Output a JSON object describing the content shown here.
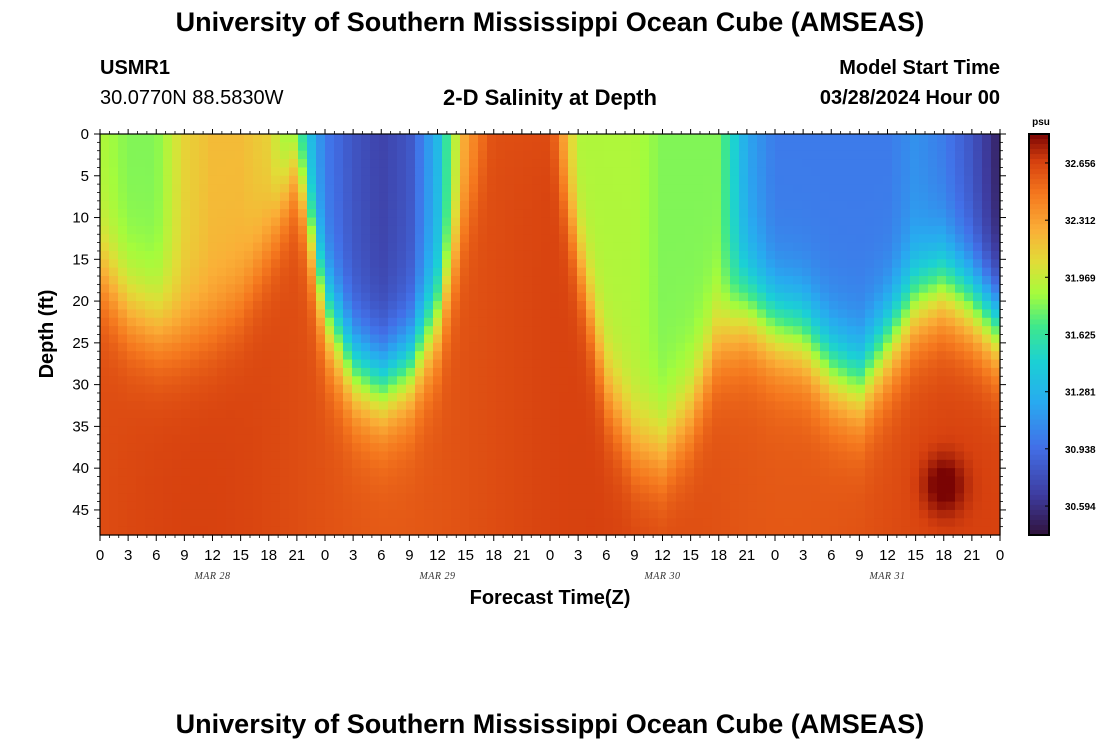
{
  "page": {
    "title": "University of Southern Mississippi Ocean Cube (AMSEAS)",
    "station": "USMR1",
    "coords": "30.0770N  88.5830W",
    "subtitle": "2-D Salinity at Depth",
    "model_label": "Model Start Time",
    "model_time": "03/28/2024 Hour 00",
    "footer_title": "University of Southern Mississippi Ocean Cube (AMSEAS)"
  },
  "chart_data": {
    "type": "heatmap",
    "title": "2-D Salinity at Depth",
    "xlabel": "Forecast Time(Z)",
    "ylabel": "Depth (ft)",
    "x_unit": "hours since model start",
    "xlim": [
      0,
      96
    ],
    "ylim": [
      48,
      0
    ],
    "x_tick_labels": [
      "0",
      "3",
      "6",
      "9",
      "12",
      "15",
      "18",
      "21",
      "0",
      "3",
      "6",
      "9",
      "12",
      "15",
      "18",
      "21",
      "0",
      "3",
      "6",
      "9",
      "12",
      "15",
      "18",
      "21",
      "0",
      "3",
      "6",
      "9",
      "12",
      "15",
      "18",
      "21",
      "0"
    ],
    "y_ticks": [
      0,
      5,
      10,
      15,
      20,
      25,
      30,
      35,
      40,
      45
    ],
    "date_labels": [
      {
        "hour": 12,
        "label": "MAR 28"
      },
      {
        "hour": 36,
        "label": "MAR 29"
      },
      {
        "hour": 60,
        "label": "MAR 30"
      },
      {
        "hour": 84,
        "label": "MAR 31"
      }
    ],
    "colorbar": {
      "unit": "psu",
      "min": 30.42,
      "max": 32.83,
      "ticks": [
        "32.656",
        "32.312",
        "31.969",
        "31.625",
        "31.281",
        "30.938",
        "30.594"
      ]
    },
    "salinity_psu_interface": {
      "description": "approximate depth (ft) of the low-salinity upper layer base vs hour",
      "hours": [
        0,
        3,
        6,
        9,
        12,
        15,
        18,
        21,
        24,
        27,
        30,
        33,
        36,
        39,
        42,
        45,
        48,
        51,
        54,
        57,
        60,
        63,
        66,
        69,
        72,
        75,
        78,
        81,
        84,
        87,
        90,
        93,
        96
      ],
      "depth_ft": [
        16,
        21,
        23,
        24,
        23,
        20,
        13,
        3,
        21,
        28,
        30,
        28,
        22,
        10,
        0,
        0,
        0,
        14,
        30,
        37,
        38,
        33,
        24,
        21,
        23,
        24,
        28,
        30,
        25,
        20,
        18,
        20,
        23
      ]
    },
    "salinity_psu_surface": {
      "hours": [
        0,
        3,
        6,
        9,
        12,
        15,
        18,
        21,
        24,
        27,
        30,
        33,
        36,
        39,
        42,
        45,
        48,
        51,
        54,
        57,
        60,
        63,
        66,
        69,
        72,
        75,
        78,
        81,
        84,
        87,
        90,
        93,
        96
      ],
      "psu": [
        31.9,
        31.8,
        31.8,
        32.1,
        32.2,
        32.2,
        32.1,
        31.6,
        31.0,
        30.8,
        30.7,
        30.8,
        31.3,
        32.3,
        32.6,
        32.6,
        32.6,
        31.9,
        31.9,
        31.9,
        31.8,
        31.8,
        31.8,
        31.2,
        31.0,
        31.0,
        31.0,
        31.0,
        31.0,
        31.1,
        31.0,
        30.8,
        30.5
      ]
    },
    "bottom_max": {
      "hour": 90,
      "depth_ft": 42,
      "psu": 32.83
    }
  }
}
